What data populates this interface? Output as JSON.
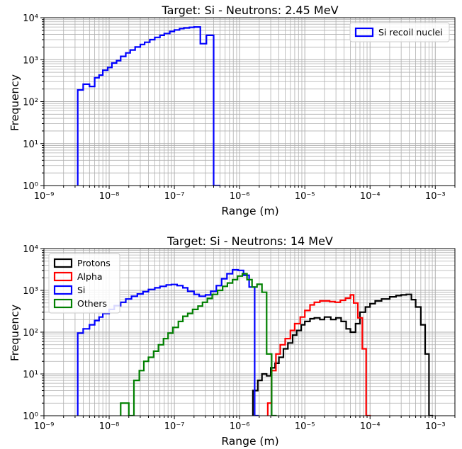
{
  "chart_data": [
    {
      "type": "histogram-step",
      "title": "Target: Si - Neutrons: 2.45 MeV",
      "xlabel": "Range (m)",
      "ylabel": "Frequency",
      "xscale": "log",
      "yscale": "log",
      "xlim": [
        1e-09,
        0.002
      ],
      "ylim": [
        1,
        10000
      ],
      "x_tick_labels": [
        "10⁻⁹",
        "10⁻⁸",
        "10⁻⁷",
        "10⁻⁶",
        "10⁻⁵",
        "10⁻⁴",
        "10⁻³"
      ],
      "y_tick_labels": [
        "10⁰",
        "10¹",
        "10²",
        "10³",
        "10⁴"
      ],
      "grid": true,
      "legend_position": "upper right",
      "series": [
        {
          "name": "Si recoil nuclei",
          "color": "#0000ff",
          "x": [
            3.3e-09,
            4e-09,
            5e-09,
            6e-09,
            7e-09,
            8e-09,
            9.5e-09,
            1.1e-08,
            1.3e-08,
            1.5e-08,
            1.8e-08,
            2.1e-08,
            2.5e-08,
            3e-08,
            3.5e-08,
            4.2e-08,
            5e-08,
            6e-08,
            7e-08,
            8.5e-08,
            1e-07,
            1.2e-07,
            1.4e-07,
            1.7e-07,
            2e-07,
            2.5e-07,
            3.1e-07,
            4e-07,
            4.9e-07
          ],
          "y": [
            190,
            260,
            230,
            370,
            430,
            560,
            650,
            830,
            950,
            1200,
            1450,
            1700,
            2000,
            2300,
            2600,
            3000,
            3400,
            3800,
            4200,
            4700,
            5100,
            5500,
            5700,
            5900,
            6000,
            2400,
            3800,
            1
          ]
        }
      ]
    },
    {
      "type": "histogram-step",
      "title": "Target: Si - Neutrons: 14 MeV",
      "xlabel": "Range (m)",
      "ylabel": "Frequency",
      "xscale": "log",
      "yscale": "log",
      "xlim": [
        1e-09,
        0.002
      ],
      "ylim": [
        1,
        10000
      ],
      "x_tick_labels": [
        "10⁻⁹",
        "10⁻⁸",
        "10⁻⁷",
        "10⁻⁶",
        "10⁻⁵",
        "10⁻⁴",
        "10⁻³"
      ],
      "y_tick_labels": [
        "10⁰",
        "10¹",
        "10²",
        "10³",
        "10⁴"
      ],
      "grid": true,
      "legend_position": "upper left",
      "series": [
        {
          "name": "Protons",
          "color": "#000000",
          "x": [
            1.6e-06,
            1.9e-06,
            2.2e-06,
            2.6e-06,
            3e-06,
            3.5e-06,
            4e-06,
            4.7e-06,
            5.5e-06,
            6.5e-06,
            7.5e-06,
            8.8e-06,
            1e-05,
            1.2e-05,
            1.4e-05,
            1.7e-05,
            2e-05,
            2.5e-05,
            3e-05,
            3.6e-05,
            4.3e-05,
            5e-05,
            6e-05,
            7e-05,
            8.5e-05,
            0.0001,
            0.00012,
            0.00015,
            0.0002,
            0.00025,
            0.0003,
            0.00036,
            0.00043,
            0.0005,
            0.0006,
            0.0007,
            0.0008,
            0.0009
          ],
          "y": [
            4,
            7,
            10,
            9,
            14,
            18,
            25,
            40,
            55,
            85,
            110,
            150,
            180,
            210,
            220,
            200,
            230,
            200,
            220,
            180,
            120,
            100,
            160,
            300,
            400,
            480,
            560,
            620,
            700,
            750,
            780,
            800,
            600,
            400,
            150,
            30,
            1
          ]
        },
        {
          "name": "Alpha",
          "color": "#ff0000",
          "x": [
            2.7e-06,
            3.1e-06,
            3.6e-06,
            4.2e-06,
            5e-06,
            6e-06,
            7e-06,
            8.5e-06,
            1e-05,
            1.2e-05,
            1.4e-05,
            1.7e-05,
            2e-05,
            2.4e-05,
            2.9e-05,
            3.5e-05,
            4.2e-05,
            5e-05,
            5.6e-05,
            6.5e-05,
            7.6e-05,
            8.7e-05,
            0.0001
          ],
          "y": [
            2,
            12,
            30,
            50,
            70,
            110,
            160,
            230,
            330,
            450,
            520,
            560,
            560,
            540,
            520,
            580,
            650,
            780,
            500,
            220,
            40,
            1
          ]
        },
        {
          "name": "Si",
          "color": "#0000ff",
          "x": [
            3.3e-09,
            4e-09,
            5e-09,
            6e-09,
            7e-09,
            8e-09,
            1e-08,
            1.2e-08,
            1.5e-08,
            1.8e-08,
            2.2e-08,
            2.7e-08,
            3.3e-08,
            4e-08,
            5e-08,
            6e-08,
            7.5e-08,
            9e-08,
            1.1e-07,
            1.35e-07,
            1.6e-07,
            2e-07,
            2.4e-07,
            3e-07,
            3.6e-07,
            4.4e-07,
            5.3e-07,
            6.4e-07,
            7.8e-07,
            9.5e-07,
            1.15e-06,
            1.4e-06,
            1.7e-06,
            1.9e-06
          ],
          "y": [
            95,
            120,
            150,
            190,
            230,
            280,
            350,
            430,
            520,
            620,
            720,
            820,
            930,
            1050,
            1150,
            1250,
            1350,
            1380,
            1300,
            1150,
            950,
            800,
            720,
            780,
            950,
            1300,
            1900,
            2500,
            3100,
            3000,
            2300,
            1200,
            1
          ]
        },
        {
          "name": "Others",
          "color": "#008000",
          "x": [
            1.5e-08,
            1.8e-08,
            2e-08,
            2.4e-08,
            2.9e-08,
            3.4e-08,
            4e-08,
            4.8e-08,
            5.7e-08,
            6.8e-08,
            8e-08,
            9.5e-08,
            1.15e-07,
            1.35e-07,
            1.6e-07,
            1.9e-07,
            2.3e-07,
            2.7e-07,
            3.2e-07,
            3.8e-07,
            4.6e-07,
            5.5e-07,
            6.5e-07,
            7.8e-07,
            9.3e-07,
            1.1e-06,
            1.3e-06,
            1.55e-06,
            1.85e-06,
            2.2e-06,
            2.6e-06,
            3.1e-06,
            3.6e-06
          ],
          "y": [
            2,
            2,
            1,
            7,
            12,
            20,
            25,
            35,
            50,
            70,
            95,
            130,
            180,
            240,
            280,
            350,
            420,
            520,
            640,
            800,
            1000,
            1250,
            1500,
            1800,
            2200,
            2500,
            1800,
            1200,
            1400,
            900,
            30,
            1
          ]
        }
      ]
    }
  ]
}
